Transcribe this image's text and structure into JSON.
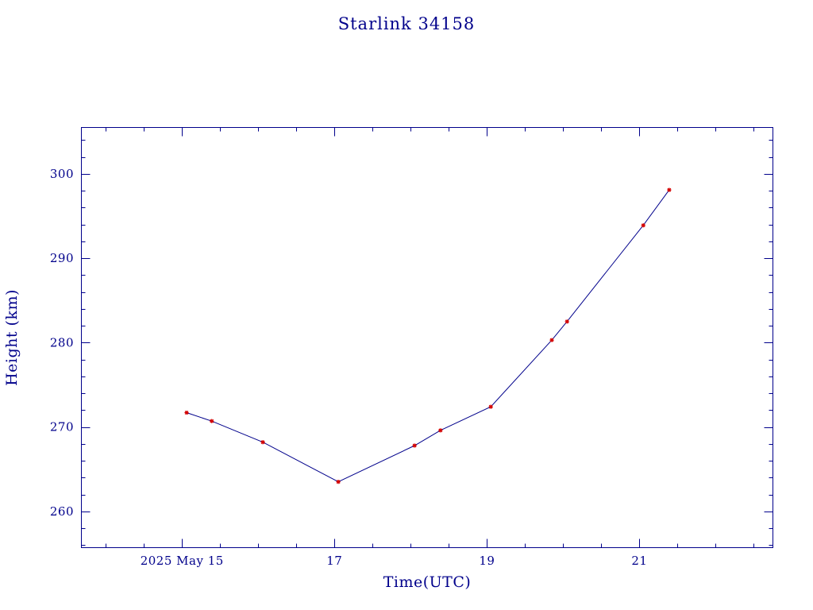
{
  "chart_data": {
    "type": "line",
    "title": "Starlink 34158",
    "xlabel": "Time(UTC)",
    "ylabel": "Height (km)",
    "x_unit": "days (UTC), 2025 May",
    "xlim": [
      13.68,
      22.75
    ],
    "ylim": [
      255.7,
      305.5
    ],
    "x_ticks": [
      {
        "value": 15,
        "label": "2025 May 15"
      },
      {
        "value": 17,
        "label": "17"
      },
      {
        "value": 19,
        "label": "19"
      },
      {
        "value": 21,
        "label": "21"
      }
    ],
    "y_ticks": [
      {
        "value": 260,
        "label": "260"
      },
      {
        "value": 270,
        "label": "270"
      },
      {
        "value": 280,
        "label": "280"
      },
      {
        "value": 290,
        "label": "290"
      },
      {
        "value": 300,
        "label": "300"
      }
    ],
    "grid": false,
    "series": [
      {
        "line_color": "#00008b",
        "marker_color": "#d40000",
        "points": [
          {
            "x": 15.06,
            "y": 271.7
          },
          {
            "x": 15.39,
            "y": 270.7
          },
          {
            "x": 16.06,
            "y": 268.2
          },
          {
            "x": 17.05,
            "y": 263.5
          },
          {
            "x": 18.05,
            "y": 267.8
          },
          {
            "x": 18.39,
            "y": 269.6
          },
          {
            "x": 19.05,
            "y": 272.4
          },
          {
            "x": 19.85,
            "y": 280.3
          },
          {
            "x": 20.05,
            "y": 282.5
          },
          {
            "x": 21.05,
            "y": 293.9
          },
          {
            "x": 21.39,
            "y": 298.1
          }
        ]
      }
    ]
  }
}
